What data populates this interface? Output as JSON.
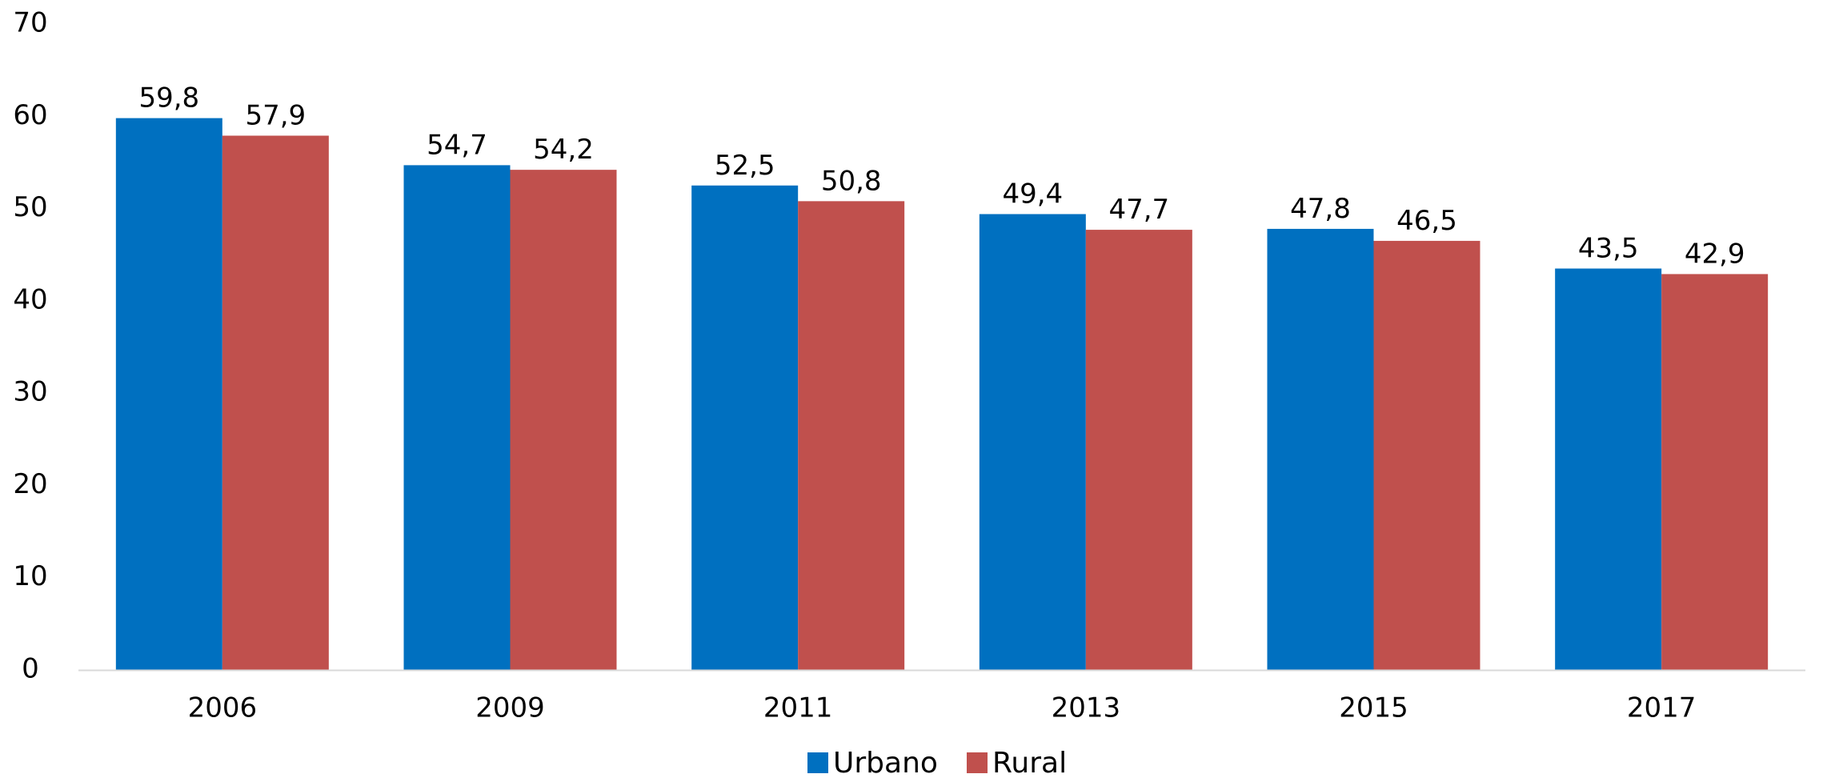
{
  "chart_data": {
    "type": "bar",
    "categories": [
      "2006",
      "2009",
      "2011",
      "2013",
      "2015",
      "2017"
    ],
    "series": [
      {
        "name": "Urbano",
        "color": "#0070C0",
        "values": [
          59.8,
          54.7,
          52.5,
          49.4,
          47.8,
          43.5
        ],
        "labels": [
          "59,8",
          "54,7",
          "52,5",
          "49,4",
          "47,8",
          "43,5"
        ]
      },
      {
        "name": "Rural",
        "color": "#C0504D",
        "values": [
          57.9,
          54.2,
          50.8,
          47.7,
          46.5,
          42.9
        ],
        "labels": [
          "57,9",
          "54,2",
          "50,8",
          "47,7",
          "46,5",
          "42,9"
        ]
      }
    ],
    "ylim": [
      0,
      70
    ],
    "yticks": [
      "0",
      "10",
      "20",
      "30",
      "40",
      "50",
      "60",
      "70"
    ],
    "grid": false,
    "legend_position": "bottom-center"
  }
}
